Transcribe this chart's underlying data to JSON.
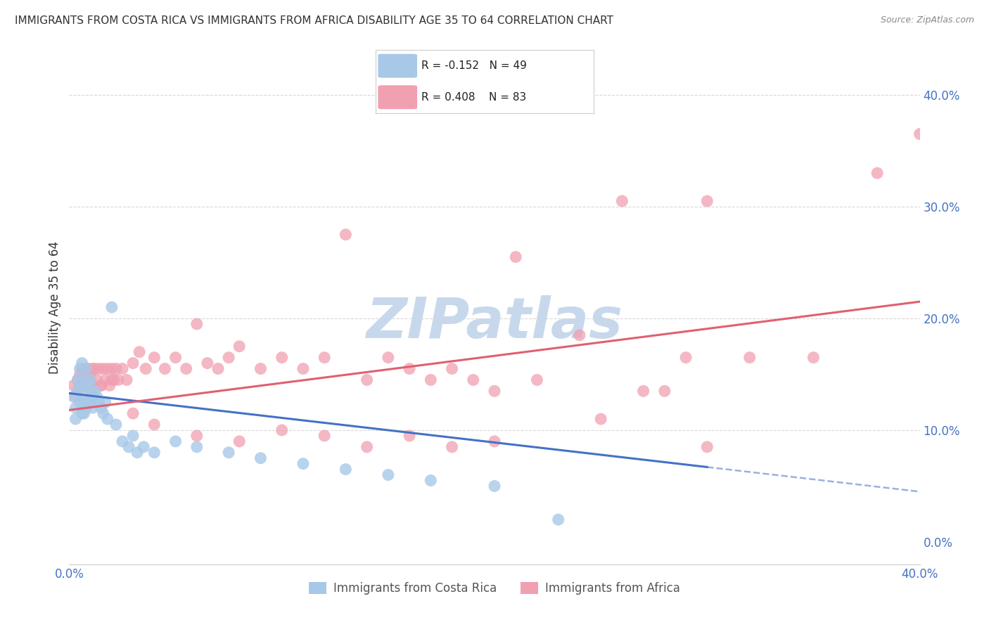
{
  "title": "IMMIGRANTS FROM COSTA RICA VS IMMIGRANTS FROM AFRICA DISABILITY AGE 35 TO 64 CORRELATION CHART",
  "source": "Source: ZipAtlas.com",
  "ylabel_left": "Disability Age 35 to 64",
  "legend_label_blue": "Immigrants from Costa Rica",
  "legend_label_pink": "Immigrants from Africa",
  "R_blue": -0.152,
  "N_blue": 49,
  "R_pink": 0.408,
  "N_pink": 83,
  "xlim": [
    0.0,
    0.4
  ],
  "ylim": [
    -0.02,
    0.44
  ],
  "right_yticks": [
    0.0,
    0.1,
    0.2,
    0.3,
    0.4
  ],
  "right_yticklabels": [
    "0.0%",
    "10.0%",
    "20.0%",
    "30.0%",
    "40.0%"
  ],
  "xticks": [
    0.0,
    0.4
  ],
  "xticklabels": [
    "0.0%",
    "40.0%"
  ],
  "color_blue": "#a8c8e8",
  "color_pink": "#f0a0b0",
  "trendline_blue": "#4472c4",
  "trendline_pink": "#e06070",
  "watermark_color": "#c8d8ec",
  "background_color": "#ffffff",
  "grid_color": "#d8d8d8",
  "blue_x": [
    0.002,
    0.003,
    0.003,
    0.004,
    0.004,
    0.005,
    0.005,
    0.005,
    0.006,
    0.006,
    0.006,
    0.007,
    0.007,
    0.007,
    0.008,
    0.008,
    0.008,
    0.009,
    0.009,
    0.01,
    0.01,
    0.01,
    0.011,
    0.011,
    0.012,
    0.013,
    0.014,
    0.015,
    0.016,
    0.017,
    0.018,
    0.02,
    0.022,
    0.025,
    0.028,
    0.03,
    0.032,
    0.035,
    0.04,
    0.05,
    0.06,
    0.075,
    0.09,
    0.11,
    0.13,
    0.15,
    0.17,
    0.2,
    0.23
  ],
  "blue_y": [
    0.13,
    0.12,
    0.11,
    0.135,
    0.145,
    0.155,
    0.14,
    0.125,
    0.16,
    0.13,
    0.115,
    0.145,
    0.125,
    0.115,
    0.155,
    0.14,
    0.12,
    0.14,
    0.125,
    0.135,
    0.145,
    0.125,
    0.13,
    0.12,
    0.135,
    0.13,
    0.125,
    0.12,
    0.115,
    0.125,
    0.11,
    0.21,
    0.105,
    0.09,
    0.085,
    0.095,
    0.08,
    0.085,
    0.08,
    0.09,
    0.085,
    0.08,
    0.075,
    0.07,
    0.065,
    0.06,
    0.055,
    0.05,
    0.02
  ],
  "pink_x": [
    0.002,
    0.003,
    0.004,
    0.004,
    0.005,
    0.005,
    0.006,
    0.006,
    0.007,
    0.007,
    0.008,
    0.008,
    0.009,
    0.009,
    0.01,
    0.01,
    0.011,
    0.011,
    0.012,
    0.013,
    0.014,
    0.015,
    0.016,
    0.017,
    0.018,
    0.019,
    0.02,
    0.021,
    0.022,
    0.023,
    0.025,
    0.027,
    0.03,
    0.033,
    0.036,
    0.04,
    0.045,
    0.05,
    0.055,
    0.06,
    0.065,
    0.07,
    0.075,
    0.08,
    0.09,
    0.1,
    0.11,
    0.12,
    0.13,
    0.14,
    0.15,
    0.16,
    0.17,
    0.18,
    0.19,
    0.2,
    0.21,
    0.22,
    0.24,
    0.26,
    0.27,
    0.28,
    0.29,
    0.3,
    0.32,
    0.35,
    0.38,
    0.4,
    0.01,
    0.015,
    0.02,
    0.03,
    0.04,
    0.06,
    0.08,
    0.1,
    0.12,
    0.14,
    0.16,
    0.18,
    0.2,
    0.25,
    0.3
  ],
  "pink_y": [
    0.14,
    0.13,
    0.145,
    0.135,
    0.15,
    0.14,
    0.155,
    0.145,
    0.15,
    0.14,
    0.155,
    0.14,
    0.155,
    0.145,
    0.15,
    0.14,
    0.155,
    0.14,
    0.155,
    0.145,
    0.155,
    0.14,
    0.155,
    0.145,
    0.155,
    0.14,
    0.155,
    0.145,
    0.155,
    0.145,
    0.155,
    0.145,
    0.16,
    0.17,
    0.155,
    0.165,
    0.155,
    0.165,
    0.155,
    0.195,
    0.16,
    0.155,
    0.165,
    0.175,
    0.155,
    0.165,
    0.155,
    0.165,
    0.275,
    0.145,
    0.165,
    0.155,
    0.145,
    0.155,
    0.145,
    0.135,
    0.255,
    0.145,
    0.185,
    0.305,
    0.135,
    0.135,
    0.165,
    0.305,
    0.165,
    0.165,
    0.33,
    0.365,
    0.135,
    0.14,
    0.145,
    0.115,
    0.105,
    0.095,
    0.09,
    0.1,
    0.095,
    0.085,
    0.095,
    0.085,
    0.09,
    0.11,
    0.085
  ],
  "blue_trend_start_x": 0.0,
  "blue_trend_solid_end_x": 0.3,
  "blue_trend_end_x": 0.4,
  "blue_trend_start_y": 0.133,
  "blue_trend_end_y": 0.045,
  "pink_trend_start_x": 0.0,
  "pink_trend_end_x": 0.4,
  "pink_trend_start_y": 0.118,
  "pink_trend_end_y": 0.215
}
